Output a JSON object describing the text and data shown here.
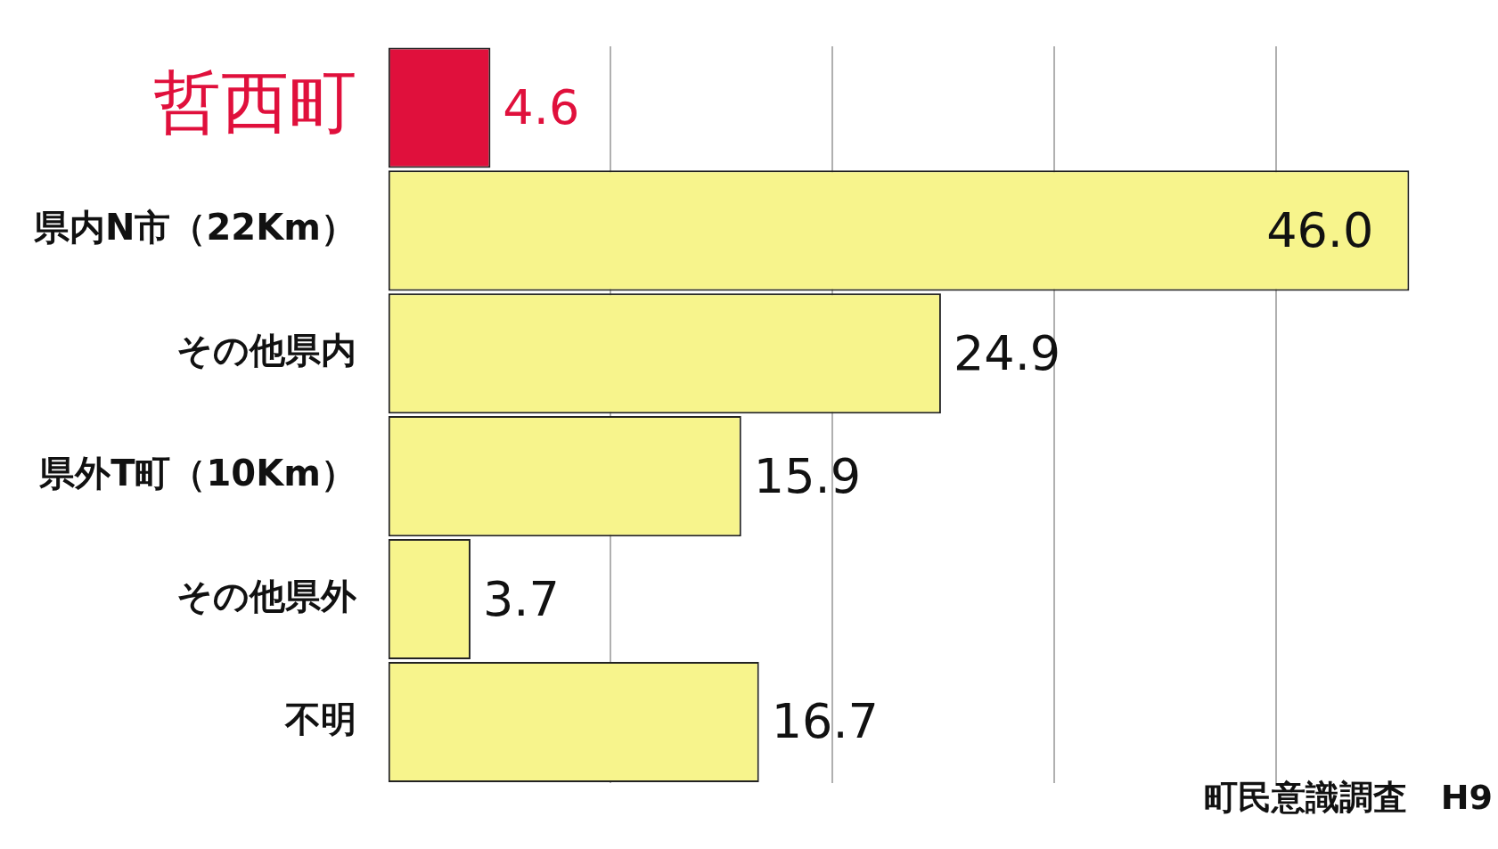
{
  "chart_data": {
    "type": "bar",
    "orientation": "horizontal",
    "categories": [
      "哲西町",
      "県内N市（22Km）",
      "その他県内",
      "県外T町（10Km）",
      "その他県外",
      "不明"
    ],
    "values": [
      4.6,
      46.0,
      24.9,
      15.9,
      3.7,
      16.7
    ],
    "colors": [
      "#e0103c",
      "#f7f48c",
      "#f7f48c",
      "#f7f48c",
      "#f7f48c",
      "#f7f48c"
    ],
    "value_labels": [
      "4.6",
      "46.0",
      "24.9",
      "15.9",
      "3.7",
      "16.7"
    ],
    "xticks": [
      {
        "value": 10,
        "label": null
      },
      {
        "value": 20,
        "label": null
      },
      {
        "value": 30,
        "label": null
      },
      {
        "value": 40,
        "label": null
      }
    ],
    "grid": "x",
    "tick_labels": "y",
    "legend": false,
    "annotations": [
      "町民意識調査　H9"
    ]
  }
}
